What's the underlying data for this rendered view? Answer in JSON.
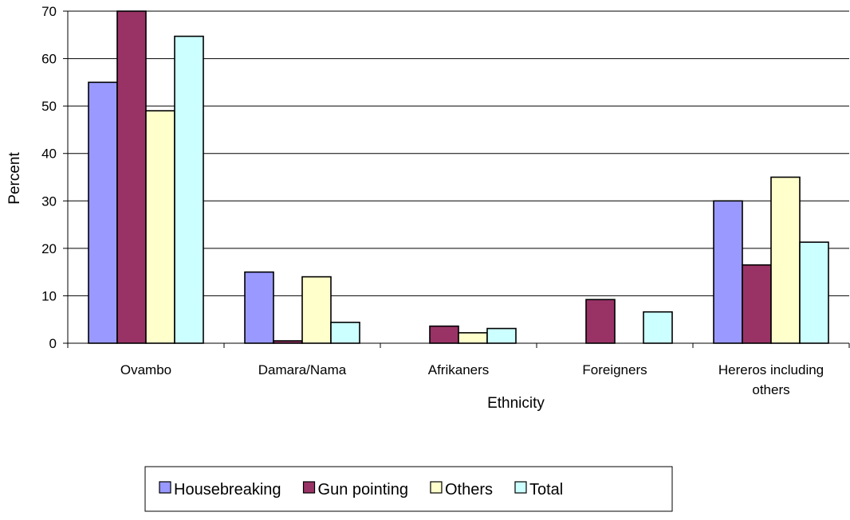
{
  "chart_data": {
    "type": "bar",
    "title": "",
    "xlabel": "Ethnicity",
    "ylabel": "Percent",
    "ylim": [
      0,
      70
    ],
    "yticks": [
      0,
      10,
      20,
      30,
      40,
      50,
      60,
      70
    ],
    "grid": true,
    "legend_position": "bottom",
    "categories": [
      "Ovambo",
      "Damara/Nama",
      "Afrikaners",
      "Foreigners",
      "Hereros including others"
    ],
    "series": [
      {
        "name": "Housebreaking",
        "color": "#9999ff",
        "values": [
          55,
          15,
          0,
          0,
          30
        ]
      },
      {
        "name": "Gun pointing",
        "color": "#993366",
        "values": [
          70,
          0.5,
          3.6,
          9.2,
          16.5
        ]
      },
      {
        "name": "Others",
        "color": "#ffffcc",
        "values": [
          49,
          14,
          2.2,
          0,
          35
        ]
      },
      {
        "name": "Total",
        "color": "#ccffff",
        "values": [
          64.7,
          4.4,
          3.1,
          6.6,
          21.3
        ]
      }
    ]
  }
}
